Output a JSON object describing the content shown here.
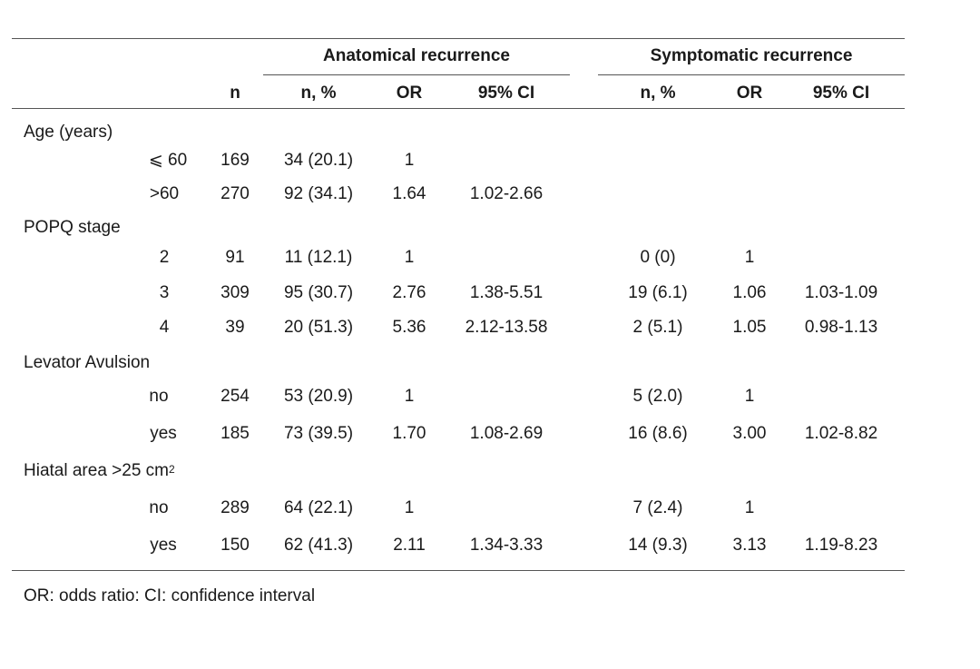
{
  "headers": {
    "anatomical": "Anatomical recurrence",
    "symptomatic": "Symptomatic recurrence",
    "n": "n",
    "anat_n_pct": "n, %",
    "anat_or": "OR",
    "anat_ci": "95% CI",
    "symp_n_pct": "n, %",
    "symp_or": "OR",
    "symp_ci": "95% CI"
  },
  "groups": [
    {
      "label": "Age (years)",
      "label_sup": "",
      "rows": [
        {
          "level": "⩽ 60",
          "n": "169",
          "a_np": "34 (20.1)",
          "a_or": "1",
          "a_ci": "",
          "s_np": "",
          "s_or": "",
          "s_ci": ""
        },
        {
          "level": ">60",
          "n": "270",
          "a_np": "92 (34.1)",
          "a_or": "1.64",
          "a_ci": "1.02-2.66",
          "s_np": "",
          "s_or": "",
          "s_ci": ""
        }
      ]
    },
    {
      "label": "POPQ stage",
      "label_sup": "",
      "rows": [
        {
          "level": "2",
          "n": "91",
          "a_np": "11 (12.1)",
          "a_or": "1",
          "a_ci": "",
          "s_np": "0 (0)",
          "s_or": "1",
          "s_ci": ""
        },
        {
          "level": "3",
          "n": "309",
          "a_np": "95 (30.7)",
          "a_or": "2.76",
          "a_ci": "1.38-5.51",
          "s_np": "19 (6.1)",
          "s_or": "1.06",
          "s_ci": "1.03-1.09"
        },
        {
          "level": "4",
          "n": "39",
          "a_np": "20 (51.3)",
          "a_or": "5.36",
          "a_ci": "2.12-13.58",
          "s_np": "2 (5.1)",
          "s_or": "1.05",
          "s_ci": "0.98-1.13"
        }
      ]
    },
    {
      "label": "Levator Avulsion",
      "label_sup": "",
      "rows": [
        {
          "level": "no",
          "n": "254",
          "a_np": "53 (20.9)",
          "a_or": "1",
          "a_ci": "",
          "s_np": "5 (2.0)",
          "s_or": "1",
          "s_ci": ""
        },
        {
          "level": "yes",
          "n": "185",
          "a_np": "73 (39.5)",
          "a_or": "1.70",
          "a_ci": "1.08-2.69",
          "s_np": "16 (8.6)",
          "s_or": "3.00",
          "s_ci": "1.02-8.82"
        }
      ]
    },
    {
      "label": "Hiatal area >25 cm",
      "label_sup": "2",
      "rows": [
        {
          "level": "no",
          "n": "289",
          "a_np": "64 (22.1)",
          "a_or": "1",
          "a_ci": "",
          "s_np": "7 (2.4)",
          "s_or": "1",
          "s_ci": ""
        },
        {
          "level": "yes",
          "n": "150",
          "a_np": "62 (41.3)",
          "a_or": "2.11",
          "a_ci": "1.34-3.33",
          "s_np": "14 (9.3)",
          "s_or": "3.13",
          "s_ci": "1.19-8.23"
        }
      ]
    }
  ],
  "footnote": "OR: odds ratio: CI: confidence interval"
}
